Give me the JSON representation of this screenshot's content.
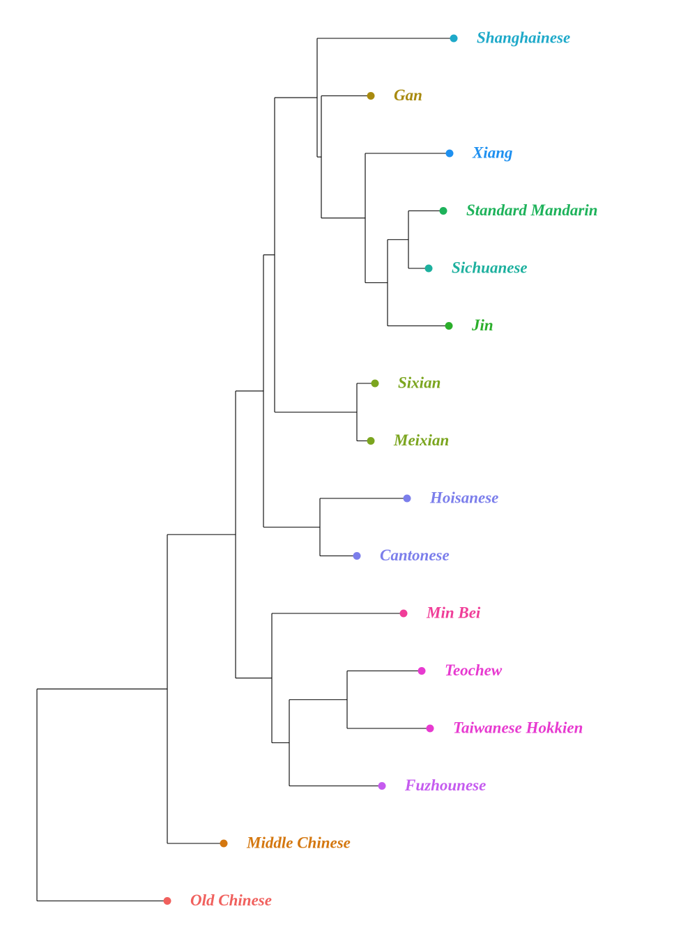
{
  "tree": {
    "tips": [
      {
        "id": "shanghainese",
        "label": "Shanghainese",
        "color": "#1EA9C9"
      },
      {
        "id": "gan",
        "label": "Gan",
        "color": "#A88A0F"
      },
      {
        "id": "xiang",
        "label": "Xiang",
        "color": "#1E90F0"
      },
      {
        "id": "standard-mandarin",
        "label": "Standard Mandarin",
        "color": "#1DB25A"
      },
      {
        "id": "sichuanese",
        "label": "Sichuanese",
        "color": "#1DB09E"
      },
      {
        "id": "jin",
        "label": "Jin",
        "color": "#2BAE2B"
      },
      {
        "id": "sixian",
        "label": "Sixian",
        "color": "#7BA51F"
      },
      {
        "id": "meixian",
        "label": "Meixian",
        "color": "#7BA51F"
      },
      {
        "id": "hoisanese",
        "label": "Hoisanese",
        "color": "#7B7EEB"
      },
      {
        "id": "cantonese",
        "label": "Cantonese",
        "color": "#7B7EEB"
      },
      {
        "id": "min-bei",
        "label": "Min Bei",
        "color": "#F03D98"
      },
      {
        "id": "teochew",
        "label": "Teochew",
        "color": "#E73AD0"
      },
      {
        "id": "taiwanese-hokkien",
        "label": "Taiwanese Hokkien",
        "color": "#E73AD0"
      },
      {
        "id": "fuzhounese",
        "label": "Fuzhounese",
        "color": "#C55BEF"
      },
      {
        "id": "middle-chinese",
        "label": "Middle Chinese",
        "color": "#D4770F"
      },
      {
        "id": "old-chinese",
        "label": "Old Chinese",
        "color": "#F0605D"
      }
    ]
  }
}
